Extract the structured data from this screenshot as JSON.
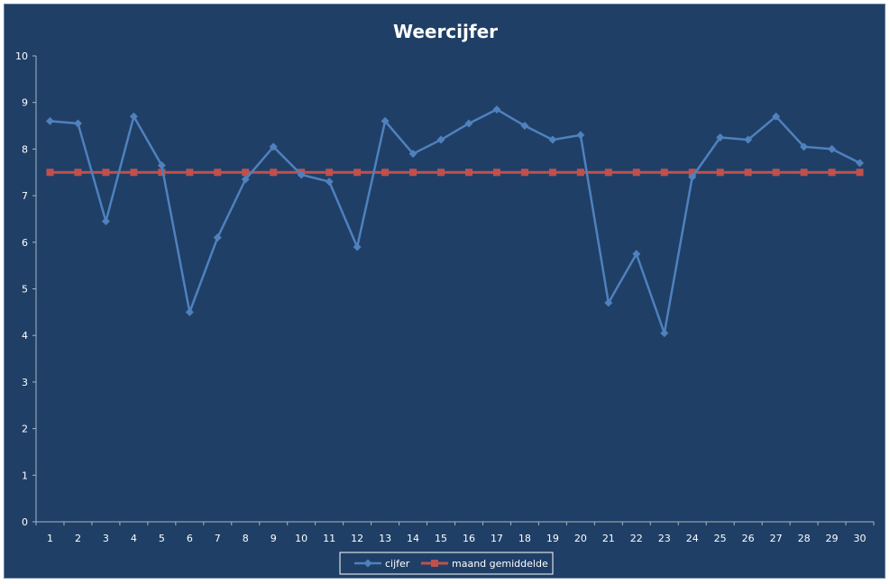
{
  "chart_data": {
    "type": "line",
    "title": "Weercijfer",
    "categories": [
      "1",
      "2",
      "3",
      "4",
      "5",
      "6",
      "7",
      "8",
      "9",
      "10",
      "11",
      "12",
      "13",
      "14",
      "15",
      "16",
      "17",
      "18",
      "19",
      "20",
      "21",
      "22",
      "23",
      "24",
      "25",
      "26",
      "27",
      "28",
      "29",
      "30"
    ],
    "ylim": [
      0,
      10
    ],
    "yticks": [
      0,
      1,
      2,
      3,
      4,
      5,
      6,
      7,
      8,
      9,
      10
    ],
    "grid": false,
    "legend_position": "bottom",
    "series": [
      {
        "name": "cijfer",
        "color": "#4f81bd",
        "marker": "diamond",
        "values": [
          8.6,
          8.55,
          6.45,
          8.7,
          7.65,
          4.5,
          6.1,
          7.35,
          8.05,
          7.45,
          7.3,
          5.9,
          8.6,
          7.9,
          8.2,
          8.55,
          8.85,
          8.5,
          8.2,
          8.3,
          4.7,
          5.75,
          4.05,
          7.4,
          8.25,
          8.2,
          8.7,
          8.05,
          8.0,
          7.7
        ]
      },
      {
        "name": "maand gemiddelde",
        "color": "#c0504d",
        "marker": "square",
        "values": [
          7.5,
          7.5,
          7.5,
          7.5,
          7.5,
          7.5,
          7.5,
          7.5,
          7.5,
          7.5,
          7.5,
          7.5,
          7.5,
          7.5,
          7.5,
          7.5,
          7.5,
          7.5,
          7.5,
          7.5,
          7.5,
          7.5,
          7.5,
          7.5,
          7.5,
          7.5,
          7.5,
          7.5,
          7.5,
          7.5
        ]
      }
    ]
  }
}
